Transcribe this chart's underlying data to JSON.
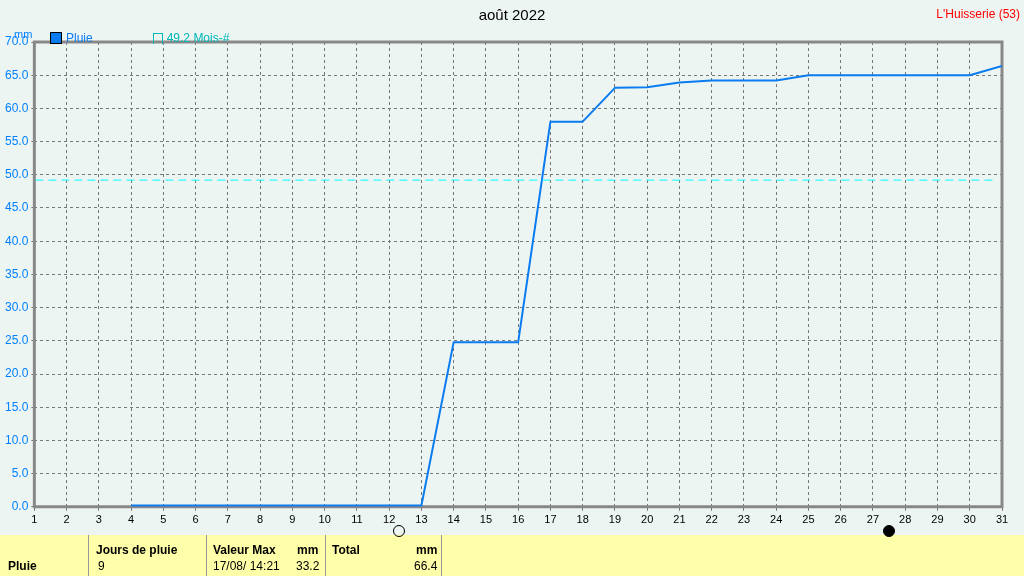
{
  "chart_data": {
    "type": "line",
    "title": "août 2022",
    "subtitle": "L'Huisserie (53)",
    "ylabel": "mm",
    "x": [
      4,
      5,
      6,
      7,
      8,
      9,
      10,
      11,
      12,
      13,
      14,
      15,
      16,
      17,
      18,
      19,
      20,
      21,
      22,
      23,
      24,
      25,
      26,
      27,
      28,
      29,
      30,
      31
    ],
    "series": [
      {
        "name": "Pluie",
        "color": "#0a7cf0",
        "values": [
          0.2,
          0.2,
          0.2,
          0.2,
          0.2,
          0.2,
          0.2,
          0.2,
          0.2,
          0.2,
          24.8,
          24.8,
          24.8,
          58.0,
          58.0,
          63.1,
          63.2,
          63.9,
          64.2,
          64.2,
          64.2,
          65.0,
          65.0,
          65.0,
          65.0,
          65.0,
          65.0,
          66.4
        ]
      }
    ],
    "xlim": [
      1,
      31
    ],
    "xticks": [
      1,
      2,
      3,
      4,
      5,
      6,
      7,
      8,
      9,
      10,
      11,
      12,
      13,
      14,
      15,
      16,
      17,
      18,
      19,
      20,
      21,
      22,
      23,
      24,
      25,
      26,
      27,
      28,
      29,
      30,
      31
    ],
    "ylim": [
      0,
      70
    ],
    "yticks": [
      {
        "value": 0,
        "label": "0.0"
      },
      {
        "value": 5,
        "label": "5.0"
      },
      {
        "value": 10,
        "label": "10.0"
      },
      {
        "value": 15,
        "label": "15.0"
      },
      {
        "value": 20,
        "label": "20.0"
      },
      {
        "value": 25,
        "label": "25.0"
      },
      {
        "value": 30,
        "label": "30.0"
      },
      {
        "value": 35,
        "label": "35.0"
      },
      {
        "value": 40,
        "label": "40.0"
      },
      {
        "value": 45,
        "label": "45.0"
      },
      {
        "value": 50,
        "label": "50.0"
      },
      {
        "value": 55,
        "label": "55.0"
      },
      {
        "value": 60,
        "label": "60.0"
      },
      {
        "value": 65,
        "label": "65.0"
      },
      {
        "value": 70,
        "label": "70.0"
      }
    ],
    "ref_lines": [
      {
        "axis": "y",
        "value": 49.2,
        "label": "49.2 Mois-#",
        "color": "#00ffff",
        "line_style": "dashed"
      }
    ],
    "grid": true,
    "legend": "top left",
    "marker": "none",
    "line_style": "solid",
    "annotations": [
      "Pluie",
      "Jours de pluie",
      "9",
      "Valeur Max",
      "mm",
      "17/08/ 14:21",
      "33.2",
      "Total",
      "mm",
      "66.4"
    ]
  }
}
